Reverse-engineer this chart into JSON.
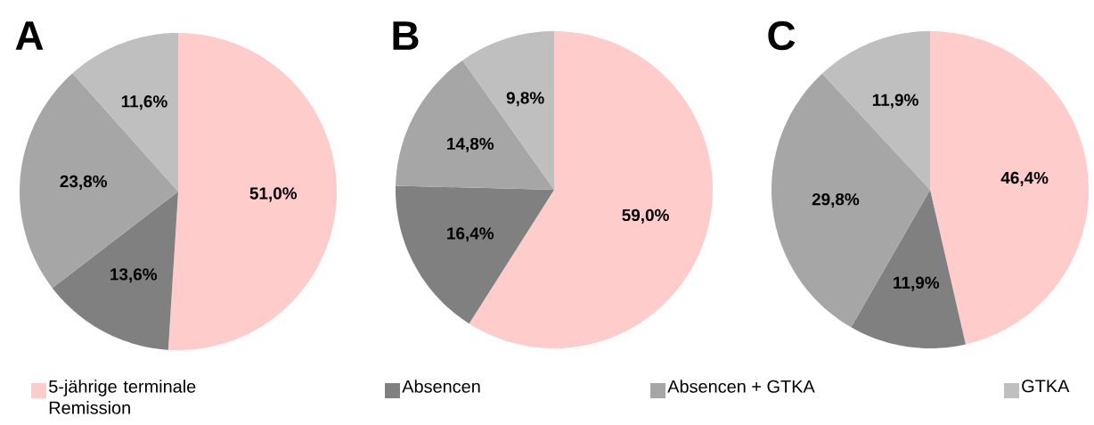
{
  "chart_data": [
    {
      "type": "pie",
      "title": "A",
      "categories": [
        "5-jährige terminale Remission",
        "Absencen",
        "Absencen + GTKA",
        "GTKA"
      ],
      "values": [
        51.0,
        13.6,
        23.8,
        11.6
      ],
      "value_labels": [
        "51,0%",
        "13,6%",
        "23,8%",
        "11,6%"
      ],
      "colors": [
        "#ffcccc",
        "#808080",
        "#a6a6a6",
        "#bfbfbf"
      ],
      "legend": "bottom"
    },
    {
      "type": "pie",
      "title": "B",
      "categories": [
        null,
        null,
        null,
        null
      ],
      "values": [
        59.0,
        16.4,
        14.8,
        9.8
      ],
      "value_labels": [
        "59,0%",
        "16,4%",
        "14,8%",
        "9,8%"
      ],
      "colors": [
        "#ffcccc",
        "#808080",
        "#a6a6a6",
        "#bfbfbf"
      ]
    },
    {
      "type": "pie",
      "title": "C",
      "categories": [
        null,
        null,
        null,
        null
      ],
      "values": [
        46.4,
        11.9,
        29.8,
        11.9
      ],
      "value_labels": [
        "46,4%",
        "11,9%",
        "29,8%",
        "11,9%"
      ],
      "colors": [
        "#ffcccc",
        "#808080",
        "#a6a6a6",
        "#bfbfbf"
      ]
    }
  ]
}
